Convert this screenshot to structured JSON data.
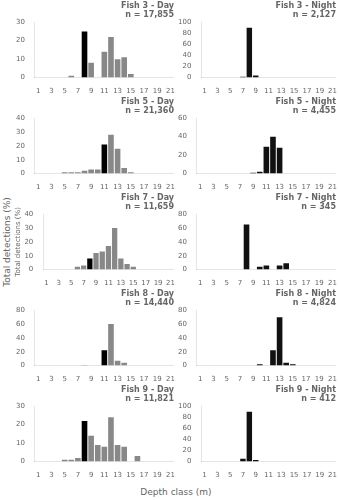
{
  "chart_data": [
    {
      "type": "bar",
      "annotations": [
        "Fish 3 - Day",
        "n = 17,855"
      ],
      "categories": [
        1,
        null,
        3,
        null,
        5,
        null,
        7,
        null,
        9,
        null,
        11,
        null,
        13,
        null,
        15,
        null,
        17,
        null,
        19,
        null,
        21
      ],
      "values": [
        0,
        0,
        0,
        0,
        0,
        1,
        0,
        25,
        8,
        0,
        14,
        22,
        10,
        11,
        2,
        0,
        0,
        0,
        0,
        0,
        0
      ],
      "colors": [
        "#888888",
        "#888888",
        "#888888",
        "#888888",
        "#888888",
        "#888888",
        "#888888",
        "#000000",
        "#888888",
        "#888888",
        "#888888",
        "#888888",
        "#888888",
        "#888888",
        "#888888",
        "#888888",
        "#888888",
        "#888888",
        "#888888",
        "#888888",
        "#888888"
      ],
      "ylim": [
        0,
        30
      ],
      "yticks": [
        0,
        10,
        20,
        30
      ],
      "grid": false
    },
    {
      "type": "bar",
      "annotations": [
        "Fish 3 - Night",
        "n = 2,127"
      ],
      "categories": [
        1,
        null,
        3,
        null,
        5,
        null,
        7,
        null,
        9,
        null,
        11,
        null,
        13,
        null,
        15,
        null,
        17,
        null,
        19,
        null,
        21
      ],
      "values": [
        0,
        0,
        0,
        0,
        0,
        0,
        1.5,
        90,
        4,
        0,
        0,
        0,
        0,
        0,
        0,
        0,
        0,
        0,
        0,
        0,
        0
      ],
      "color": "#111111",
      "ylim": [
        0,
        100
      ],
      "yticks": [
        0,
        20,
        40,
        60,
        80,
        100
      ],
      "grid": false
    },
    {
      "type": "bar",
      "annotations": [
        "Fish 5 - Day",
        "n = 21,360"
      ],
      "categories": [
        1,
        null,
        3,
        null,
        5,
        null,
        7,
        null,
        9,
        null,
        11,
        null,
        13,
        null,
        15,
        null,
        17,
        null,
        19,
        null,
        21
      ],
      "values": [
        0,
        0,
        0,
        0,
        1,
        1,
        1,
        2,
        3,
        3,
        21,
        28,
        18,
        4,
        1,
        0,
        0,
        0,
        0,
        0,
        0
      ],
      "colors": [
        "#888888",
        "#888888",
        "#888888",
        "#888888",
        "#888888",
        "#888888",
        "#888888",
        "#888888",
        "#888888",
        "#888888",
        "#000000",
        "#888888",
        "#888888",
        "#888888",
        "#888888",
        "#888888",
        "#888888",
        "#888888",
        "#888888",
        "#888888",
        "#888888"
      ],
      "ylim": [
        0,
        40
      ],
      "yticks": [
        0,
        10,
        20,
        30,
        40
      ],
      "grid": false
    },
    {
      "type": "bar",
      "annotations": [
        "Fish 5 - Night",
        "n = 4,455"
      ],
      "categories": [
        1,
        null,
        3,
        null,
        5,
        null,
        7,
        null,
        9,
        null,
        11,
        null,
        13,
        null,
        15,
        null,
        17,
        null,
        19,
        null,
        21
      ],
      "values": [
        0,
        0,
        0,
        0,
        0,
        0,
        0,
        0,
        1,
        2,
        29,
        40,
        28,
        0,
        0,
        0,
        0,
        0,
        0,
        0,
        0
      ],
      "color": "#111111",
      "ylim": [
        0,
        60
      ],
      "yticks": [
        0,
        20,
        40,
        60
      ],
      "grid": false
    },
    {
      "type": "bar",
      "annotations": [
        "Fish 7 - Day",
        "n = 11,659"
      ],
      "ylabel": "Total detections (%)",
      "categories": [
        1,
        null,
        3,
        null,
        5,
        null,
        7,
        null,
        9,
        null,
        11,
        null,
        13,
        null,
        15,
        null,
        17,
        null,
        19,
        null,
        21
      ],
      "values": [
        0,
        0,
        0,
        0,
        0,
        2,
        3,
        8,
        12,
        13,
        17,
        30,
        8,
        4,
        2,
        0,
        0,
        0,
        0,
        0,
        0
      ],
      "colors": [
        "#888888",
        "#888888",
        "#888888",
        "#888888",
        "#888888",
        "#888888",
        "#888888",
        "#000000",
        "#888888",
        "#888888",
        "#888888",
        "#888888",
        "#888888",
        "#888888",
        "#888888",
        "#888888",
        "#888888",
        "#888888",
        "#888888",
        "#888888",
        "#888888"
      ],
      "ylim": [
        0,
        40
      ],
      "yticks": [
        0,
        10,
        20,
        30,
        40
      ],
      "grid": false
    },
    {
      "type": "bar",
      "annotations": [
        "Fish 7 - Night",
        "n = 345"
      ],
      "categories": [
        1,
        null,
        3,
        null,
        5,
        null,
        7,
        null,
        9,
        null,
        11,
        null,
        13,
        null,
        15,
        null,
        17,
        null,
        19,
        null,
        21
      ],
      "values": [
        0,
        0,
        0,
        0,
        0,
        0,
        0,
        65,
        0,
        4,
        6,
        0,
        6,
        9,
        0,
        0,
        0,
        0,
        0,
        0,
        0
      ],
      "color": "#111111",
      "ylim": [
        0,
        80
      ],
      "yticks": [
        0,
        20,
        40,
        60,
        80
      ],
      "grid": false
    },
    {
      "type": "bar",
      "annotations": [
        "Fish 8 - Day",
        "n = 14,440"
      ],
      "categories": [
        1,
        null,
        3,
        null,
        5,
        null,
        7,
        null,
        9,
        null,
        11,
        null,
        13,
        null,
        15,
        null,
        17,
        null,
        19,
        null,
        21
      ],
      "values": [
        0,
        0,
        0,
        0,
        0,
        0,
        0,
        1,
        0,
        0,
        22,
        60,
        7,
        4,
        0,
        0,
        0,
        0,
        0,
        0,
        0
      ],
      "colors": [
        "#888888",
        "#888888",
        "#888888",
        "#888888",
        "#888888",
        "#888888",
        "#888888",
        "#888888",
        "#888888",
        "#888888",
        "#000000",
        "#888888",
        "#888888",
        "#888888",
        "#888888",
        "#888888",
        "#888888",
        "#888888",
        "#888888",
        "#888888",
        "#888888"
      ],
      "ylim": [
        0,
        80
      ],
      "yticks": [
        0,
        20,
        40,
        60,
        80
      ],
      "grid": false
    },
    {
      "type": "bar",
      "annotations": [
        "Fish 8 - Night",
        "n = 4,824"
      ],
      "categories": [
        1,
        null,
        3,
        null,
        5,
        null,
        7,
        null,
        9,
        null,
        11,
        null,
        13,
        null,
        15,
        null,
        17,
        null,
        19,
        null,
        21
      ],
      "values": [
        0,
        0,
        0,
        0,
        0,
        0,
        0,
        0,
        0,
        2,
        0,
        22,
        70,
        4,
        2,
        0,
        0,
        0,
        0,
        0,
        0
      ],
      "color": "#111111",
      "ylim": [
        0,
        80
      ],
      "yticks": [
        0,
        20,
        40,
        60,
        80
      ],
      "grid": false
    },
    {
      "type": "bar",
      "annotations": [
        "Fish 9 - Day",
        "n = 11,821"
      ],
      "categories": [
        1,
        null,
        3,
        null,
        5,
        null,
        7,
        null,
        9,
        null,
        11,
        null,
        13,
        null,
        15,
        null,
        17,
        null,
        19,
        null,
        21
      ],
      "values": [
        0,
        0,
        0,
        0,
        1,
        1,
        2,
        22,
        14,
        9,
        8,
        24,
        9,
        8,
        0,
        3,
        0,
        0,
        0,
        0,
        0
      ],
      "colors": [
        "#888888",
        "#888888",
        "#888888",
        "#888888",
        "#888888",
        "#888888",
        "#888888",
        "#000000",
        "#888888",
        "#888888",
        "#888888",
        "#888888",
        "#888888",
        "#888888",
        "#888888",
        "#888888",
        "#888888",
        "#888888",
        "#888888",
        "#888888",
        "#888888"
      ],
      "ylim": [
        0,
        30
      ],
      "yticks": [
        0,
        10,
        20,
        30
      ],
      "grid": false
    },
    {
      "type": "bar",
      "annotations": [
        "Fish 9 - Night",
        "n = 412"
      ],
      "categories": [
        1,
        null,
        3,
        null,
        5,
        null,
        7,
        null,
        9,
        null,
        11,
        null,
        13,
        null,
        15,
        null,
        17,
        null,
        19,
        null,
        21
      ],
      "values": [
        0,
        0,
        0,
        0,
        0,
        0,
        5,
        90,
        3,
        0,
        0,
        0,
        0,
        0,
        0,
        0,
        0,
        0,
        0,
        0,
        0
      ],
      "color": "#111111",
      "ylim": [
        0,
        100
      ],
      "yticks": [
        0,
        20,
        40,
        60,
        80,
        100
      ],
      "grid": false
    }
  ],
  "xlabel": "Depth class (m)",
  "ylabel": "Total detections (%)"
}
